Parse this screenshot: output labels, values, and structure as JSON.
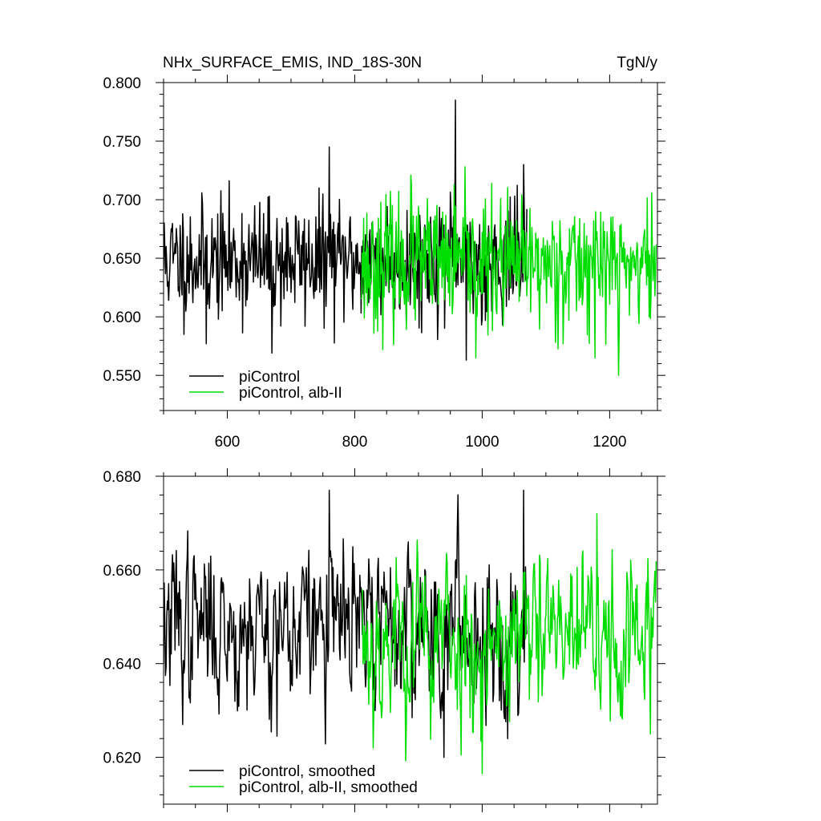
{
  "chart_data": [
    {
      "type": "line",
      "title": "NHx_SURFACE_EMIS, IND_18S-30N",
      "units": "TgN/y",
      "xlabel": "",
      "ylabel": "",
      "xlim": [
        500,
        1275
      ],
      "ylim": [
        0.52,
        0.8
      ],
      "xticks": [
        600,
        800,
        1000,
        1200
      ],
      "xtick_labels": [
        "600",
        "800",
        "1000",
        "1200"
      ],
      "yticks": [
        0.55,
        0.6,
        0.65,
        0.7,
        0.75,
        0.8
      ],
      "ytick_labels": [
        "0.550",
        "0.600",
        "0.650",
        "0.700",
        "0.750",
        "0.800"
      ],
      "grid": false,
      "legend_position": "bottom-left",
      "series": [
        {
          "name": "piControl",
          "color": "#000000",
          "x_range": [
            500,
            1070
          ],
          "mean": 0.648,
          "std": 0.025,
          "seed": 11,
          "extremes": [
            {
              "x": 958,
              "y": 0.785
            },
            {
              "x": 760,
              "y": 0.745
            },
            {
              "x": 670,
              "y": 0.569
            },
            {
              "x": 567,
              "y": 0.577
            },
            {
              "x": 1065,
              "y": 0.73
            },
            {
              "x": 975,
              "y": 0.563
            }
          ]
        },
        {
          "name": "piControl, alb-II",
          "color": "#00dd00",
          "x_range": [
            810,
            1273
          ],
          "mean": 0.645,
          "std": 0.027,
          "seed": 23,
          "extremes": [
            {
              "x": 1214,
              "y": 0.55
            },
            {
              "x": 888,
              "y": 0.721
            },
            {
              "x": 990,
              "y": 0.565
            }
          ]
        }
      ]
    },
    {
      "type": "line",
      "title": "",
      "xlabel": "",
      "ylabel": "",
      "xlim": [
        500,
        1275
      ],
      "ylim": [
        0.61,
        0.68
      ],
      "xticks": [
        600,
        800,
        1000,
        1200
      ],
      "xtick_labels": [],
      "yticks": [
        0.62,
        0.64,
        0.66,
        0.68
      ],
      "ytick_labels": [
        "0.620",
        "0.640",
        "0.660",
        "0.680"
      ],
      "grid": false,
      "legend_position": "bottom-left",
      "series": [
        {
          "name": "piControl, smoothed",
          "color": "#000000",
          "x_range": [
            500,
            1070
          ],
          "mean": 0.648,
          "std": 0.0085,
          "seed": 37,
          "extremes": [
            {
              "x": 760,
              "y": 0.677
            },
            {
              "x": 1065,
              "y": 0.677
            },
            {
              "x": 678,
              "y": 0.6245
            },
            {
              "x": 940,
              "y": 0.62
            },
            {
              "x": 1040,
              "y": 0.624
            }
          ]
        },
        {
          "name": "piControl, alb-II, smoothed",
          "color": "#00dd00",
          "x_range": [
            812,
            1273
          ],
          "mean": 0.645,
          "std": 0.009,
          "seed": 53,
          "extremes": [
            {
              "x": 1180,
              "y": 0.672
            },
            {
              "x": 1000,
              "y": 0.6165
            },
            {
              "x": 1264,
              "y": 0.625
            }
          ]
        }
      ]
    }
  ]
}
